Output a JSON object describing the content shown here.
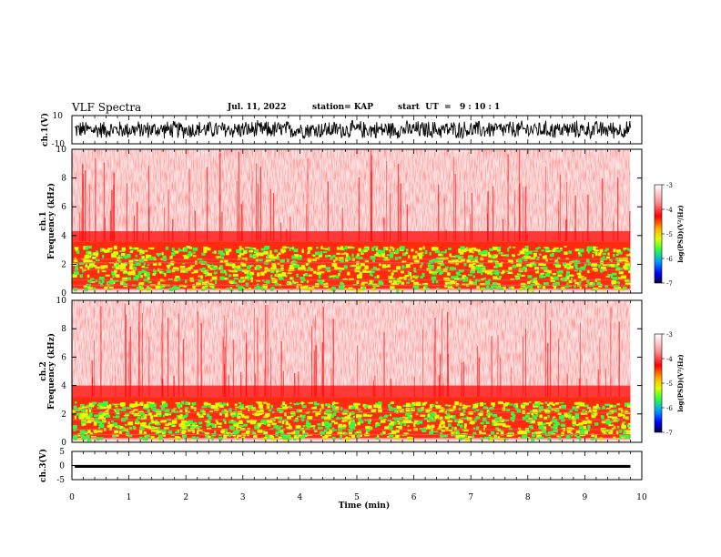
{
  "header": {
    "title": "VLF Spectra",
    "date": "Jul. 11, 2022",
    "station": "station= KAP",
    "start": "start  UT  =   9 : 10 : 1"
  },
  "colors": {
    "spectrogram_background": "#fbe3e3",
    "spectrogram_high": "#ff1a1a",
    "band_yellow": "#e0ff00",
    "band_green": "#30ff40",
    "waveform": "#000000"
  },
  "chart_data": [
    {
      "type": "line",
      "name": "waveform-ch1",
      "ylabel": "ch.1(V)",
      "ylim": [
        -10,
        10
      ],
      "yticks": [
        "10",
        "-10"
      ],
      "xlim": [
        0,
        10
      ],
      "description_values": {
        "approx_range": [
          -7,
          7
        ]
      }
    },
    {
      "type": "heatmap",
      "name": "spectrogram-ch1",
      "ylabel_line1": "ch.1",
      "ylabel_line2": "Frequency  (kHz)",
      "ylim": [
        0,
        10
      ],
      "yticks": [
        "0",
        "2",
        "4",
        "6",
        "8",
        "10"
      ],
      "xlim": [
        0,
        9.8
      ],
      "colorbar": {
        "label": "log(PSD)(V²/Hz)",
        "range": [
          -7,
          -3
        ],
        "ticks": [
          "-3",
          "-4",
          "-5",
          "-6",
          "-7"
        ]
      },
      "bands": [
        {
          "from": 0.3,
          "to": 3.6,
          "level": "high (yellow/green)"
        },
        {
          "from": 3.6,
          "to": 4.3,
          "level": "medium (red)"
        },
        {
          "from": 4.3,
          "to": 10,
          "level": "low (pale red)"
        }
      ]
    },
    {
      "type": "heatmap",
      "name": "spectrogram-ch2",
      "ylabel_line1": "ch.2",
      "ylabel_line2": "Frequency  (kHz)",
      "ylim": [
        0,
        10
      ],
      "yticks": [
        "0",
        "2",
        "4",
        "6",
        "8",
        "10"
      ],
      "xlim": [
        0,
        9.8
      ],
      "colorbar": {
        "label": "log(PSD)(V²/Hz)",
        "range": [
          -7,
          -3
        ],
        "ticks": [
          "-3",
          "-4",
          "-5",
          "-6",
          "-7"
        ]
      },
      "bands": [
        {
          "from": 0.3,
          "to": 3.2,
          "level": "high (yellow/green)"
        },
        {
          "from": 3.2,
          "to": 4.0,
          "level": "medium (red)"
        },
        {
          "from": 4.0,
          "to": 10,
          "level": "low (pale red)"
        }
      ]
    },
    {
      "type": "line",
      "name": "waveform-ch3",
      "ylabel": "ch.3(V)",
      "ylim": [
        -5,
        5
      ],
      "yticks": [
        "5",
        "0",
        "-5"
      ],
      "xlim": [
        0,
        10
      ],
      "xlabel": "Time  (min)",
      "xticks": [
        "0",
        "1",
        "2",
        "3",
        "4",
        "5",
        "6",
        "7",
        "8",
        "9",
        "10"
      ],
      "description_values": {
        "approx_range": [
          -0.8,
          0.2
        ]
      }
    }
  ]
}
